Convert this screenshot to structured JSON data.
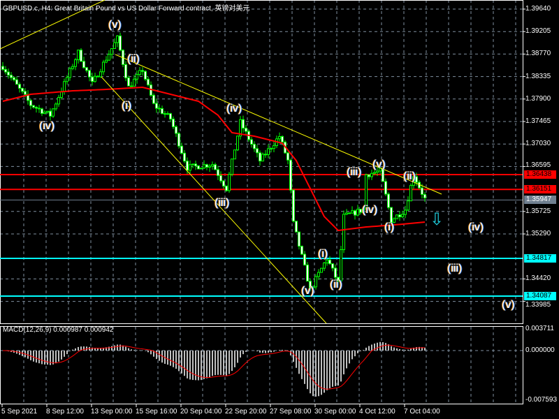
{
  "window": {
    "title": "GBPUSD.c, H4:  Great Britain Pound vs US Dollar Forward contract, 英镑对美元"
  },
  "colors": {
    "background": "#000000",
    "grid": "#8090a0",
    "candle": "#00ff00",
    "moving_average": "#ff0000",
    "resistance_lines": "#ff0000",
    "support_lines": "#00ffff",
    "trendlines": "#ffff00",
    "macd_histogram": "#c0c0c0",
    "macd_signal": "#ff0000",
    "arrow": "#1fd0e0"
  },
  "price_axis": {
    "labels": [
      "1.39640",
      "1.39205",
      "1.38770",
      "1.38335",
      "1.37900",
      "1.37465",
      "1.37030",
      "1.36595",
      "1.35725",
      "1.35290",
      "1.34420",
      "1.33985"
    ]
  },
  "price_tags": [
    {
      "value": "1.36438",
      "color": "#ff0000",
      "text_color": "#000000"
    },
    {
      "value": "1.36151",
      "color": "#ff0000",
      "text_color": "#000000"
    },
    {
      "value": "1.35947",
      "color": "#708090",
      "text_color": "#ffffff"
    },
    {
      "value": "1.34817",
      "color": "#00ffff",
      "text_color": "#000000"
    },
    {
      "value": "1.34087",
      "color": "#00ffff",
      "text_color": "#000000"
    }
  ],
  "time_axis": {
    "labels": [
      "5 Sep 2021",
      "8 Sep 12:00",
      "13 Sep 00:00",
      "15 Sep 16:00",
      "20 Sep 04:00",
      "22 Sep 20:00",
      "27 Sep 08:00",
      "30 Sep 00:00",
      "4 Oct 12:00",
      "7 Oct 04:00"
    ]
  },
  "price_path": [
    [
      0,
      1.38532
    ],
    [
      10,
      1.37789
    ],
    [
      17,
      1.37587
    ],
    [
      27,
      1.38802
    ],
    [
      32,
      1.38194
    ],
    [
      41,
      1.39073
    ],
    [
      45,
      1.38127
    ],
    [
      50,
      1.38465
    ],
    [
      54,
      1.37789
    ],
    [
      60,
      1.37519
    ],
    [
      66,
      1.36573
    ],
    [
      75,
      1.36641
    ],
    [
      80,
      1.36168
    ],
    [
      85,
      1.37451
    ],
    [
      92,
      1.36708
    ],
    [
      99,
      1.37181
    ],
    [
      102,
      1.36708
    ],
    [
      104,
      1.35492
    ],
    [
      110,
      1.34209
    ],
    [
      116,
      1.34817
    ],
    [
      120,
      1.34344
    ],
    [
      122,
      1.35627
    ],
    [
      129,
      1.35763
    ],
    [
      130,
      1.36438
    ],
    [
      135,
      1.36506
    ],
    [
      139,
      1.3556
    ],
    [
      144,
      1.35763
    ],
    [
      147,
      1.36438
    ],
    [
      151,
      1.35966
    ]
  ],
  "moving_average_path": [
    [
      0,
      1.37857
    ],
    [
      10,
      1.37992
    ],
    [
      25,
      1.38059
    ],
    [
      37,
      1.38086
    ],
    [
      50,
      1.38127
    ],
    [
      60,
      1.37992
    ],
    [
      70,
      1.37857
    ],
    [
      77,
      1.37587
    ],
    [
      82,
      1.37249
    ],
    [
      90,
      1.37181
    ],
    [
      100,
      1.37046
    ],
    [
      105,
      1.36708
    ],
    [
      110,
      1.36168
    ],
    [
      115,
      1.35627
    ],
    [
      120,
      1.35357
    ],
    [
      130,
      1.35425
    ],
    [
      140,
      1.35465
    ],
    [
      151,
      1.35519
    ]
  ],
  "macd": {
    "title": "MACD(12,26,9) 0.000987 0.000942",
    "axis_labels": [
      "0.003711",
      "0.000000",
      "-0.007593"
    ]
  },
  "wave_labels": [
    "(v)",
    "(ii)",
    "(i)",
    "(iv)",
    "(iv)",
    "(iii)",
    "(v)",
    "(i)",
    "(ii)",
    "(iii)",
    "(v)",
    "(iv)",
    "(i)",
    "(ii)",
    "(iv)",
    "(iii)",
    "(v)"
  ],
  "arrow_icon": "down-arrow-outline"
}
